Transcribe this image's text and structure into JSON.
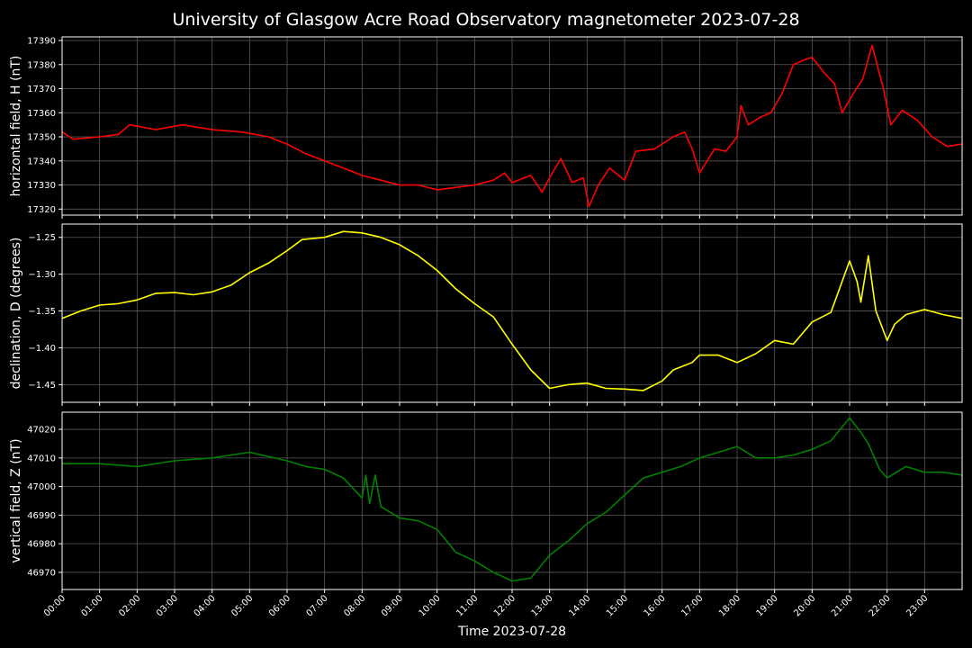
{
  "chart_data": {
    "title": "University of Glasgow Acre Road Observatory magnetometer 2023-07-28",
    "xlabel": "Time 2023-07-28",
    "x_ticks": [
      "00:00",
      "01:00",
      "02:00",
      "03:00",
      "04:00",
      "05:00",
      "06:00",
      "07:00",
      "08:00",
      "09:00",
      "10:00",
      "11:00",
      "12:00",
      "13:00",
      "14:00",
      "15:00",
      "16:00",
      "17:00",
      "18:00",
      "19:00",
      "20:00",
      "21:00",
      "22:00",
      "23:00"
    ],
    "xlim_hours": [
      0,
      24
    ],
    "grid": true,
    "panels": [
      {
        "type": "line",
        "name": "horizontal",
        "ylabel": "horizontal field, H (nT)",
        "color": "#ff0000",
        "ylim": [
          17317.5,
          17391.5
        ],
        "y_ticks": [
          "17320",
          "17330",
          "17340",
          "17350",
          "17360",
          "17370",
          "17380",
          "17390"
        ],
        "y_tick_values": [
          17320,
          17330,
          17340,
          17350,
          17360,
          17370,
          17380,
          17390
        ],
        "points": [
          [
            0,
            17352
          ],
          [
            0.3,
            17349
          ],
          [
            1,
            17350
          ],
          [
            1.5,
            17351
          ],
          [
            1.8,
            17355
          ],
          [
            2.5,
            17353
          ],
          [
            3.2,
            17355
          ],
          [
            4,
            17353
          ],
          [
            4.8,
            17352
          ],
          [
            5.5,
            17350
          ],
          [
            6,
            17347
          ],
          [
            6.5,
            17343
          ],
          [
            7,
            17340
          ],
          [
            7.5,
            17337
          ],
          [
            8,
            17334
          ],
          [
            8.5,
            17332
          ],
          [
            9,
            17330
          ],
          [
            9.5,
            17330
          ],
          [
            10,
            17328
          ],
          [
            10.5,
            17329
          ],
          [
            11,
            17330
          ],
          [
            11.5,
            17332
          ],
          [
            11.8,
            17335
          ],
          [
            12,
            17331
          ],
          [
            12.5,
            17334
          ],
          [
            12.8,
            17327
          ],
          [
            13,
            17333
          ],
          [
            13.3,
            17341
          ],
          [
            13.6,
            17331
          ],
          [
            13.9,
            17333
          ],
          [
            14.05,
            17321
          ],
          [
            14.3,
            17330
          ],
          [
            14.6,
            17337
          ],
          [
            15,
            17332
          ],
          [
            15.3,
            17344
          ],
          [
            15.8,
            17345
          ],
          [
            16.3,
            17350
          ],
          [
            16.6,
            17352
          ],
          [
            16.8,
            17345
          ],
          [
            17,
            17335
          ],
          [
            17.4,
            17345
          ],
          [
            17.7,
            17344
          ],
          [
            18,
            17350
          ],
          [
            18.1,
            17363
          ],
          [
            18.3,
            17355
          ],
          [
            18.6,
            17358
          ],
          [
            18.9,
            17360
          ],
          [
            19.2,
            17368
          ],
          [
            19.5,
            17380
          ],
          [
            19.8,
            17382
          ],
          [
            20,
            17383
          ],
          [
            20.3,
            17377
          ],
          [
            20.6,
            17372
          ],
          [
            20.8,
            17360
          ],
          [
            21.1,
            17368
          ],
          [
            21.35,
            17374
          ],
          [
            21.6,
            17388
          ],
          [
            21.9,
            17370
          ],
          [
            22.1,
            17355
          ],
          [
            22.4,
            17361
          ],
          [
            22.8,
            17357
          ],
          [
            23.2,
            17350
          ],
          [
            23.6,
            17346
          ],
          [
            24,
            17347
          ]
        ]
      },
      {
        "type": "line",
        "name": "declination",
        "ylabel": "declination, D (degrees)",
        "color": "#ffff00",
        "ylim": [
          -1.474,
          -1.232
        ],
        "y_ticks": [
          "−1.45",
          "−1.40",
          "−1.35",
          "−1.30",
          "−1.25"
        ],
        "y_tick_values": [
          -1.45,
          -1.4,
          -1.35,
          -1.3,
          -1.25
        ],
        "points": [
          [
            0,
            -1.36
          ],
          [
            0.5,
            -1.35
          ],
          [
            1,
            -1.342
          ],
          [
            1.5,
            -1.34
          ],
          [
            2,
            -1.335
          ],
          [
            2.5,
            -1.326
          ],
          [
            3,
            -1.325
          ],
          [
            3.5,
            -1.328
          ],
          [
            4,
            -1.324
          ],
          [
            4.5,
            -1.315
          ],
          [
            5,
            -1.298
          ],
          [
            5.5,
            -1.285
          ],
          [
            6,
            -1.268
          ],
          [
            6.4,
            -1.253
          ],
          [
            7,
            -1.25
          ],
          [
            7.5,
            -1.242
          ],
          [
            8,
            -1.244
          ],
          [
            8.5,
            -1.25
          ],
          [
            9,
            -1.26
          ],
          [
            9.5,
            -1.275
          ],
          [
            10,
            -1.295
          ],
          [
            10.5,
            -1.32
          ],
          [
            11,
            -1.34
          ],
          [
            11.5,
            -1.358
          ],
          [
            12,
            -1.395
          ],
          [
            12.5,
            -1.43
          ],
          [
            13,
            -1.455
          ],
          [
            13.5,
            -1.45
          ],
          [
            14,
            -1.448
          ],
          [
            14.5,
            -1.455
          ],
          [
            15,
            -1.456
          ],
          [
            15.5,
            -1.458
          ],
          [
            16,
            -1.445
          ],
          [
            16.3,
            -1.43
          ],
          [
            16.8,
            -1.42
          ],
          [
            17,
            -1.41
          ],
          [
            17.5,
            -1.41
          ],
          [
            18,
            -1.42
          ],
          [
            18.5,
            -1.408
          ],
          [
            19,
            -1.39
          ],
          [
            19.5,
            -1.395
          ],
          [
            20,
            -1.365
          ],
          [
            20.5,
            -1.352
          ],
          [
            20.8,
            -1.31
          ],
          [
            21,
            -1.282
          ],
          [
            21.2,
            -1.31
          ],
          [
            21.3,
            -1.338
          ],
          [
            21.5,
            -1.275
          ],
          [
            21.7,
            -1.35
          ],
          [
            22,
            -1.39
          ],
          [
            22.2,
            -1.368
          ],
          [
            22.5,
            -1.355
          ],
          [
            23,
            -1.348
          ],
          [
            23.5,
            -1.355
          ],
          [
            24,
            -1.36
          ]
        ]
      },
      {
        "type": "line",
        "name": "vertical",
        "ylabel": "vertical field, Z (nT)",
        "color": "#008000",
        "ylim": [
          46964,
          47026
        ],
        "y_ticks": [
          "46970",
          "46980",
          "46990",
          "47000",
          "47010",
          "47020"
        ],
        "y_tick_values": [
          46970,
          46980,
          46990,
          47000,
          47010,
          47020
        ],
        "points": [
          [
            0,
            47008
          ],
          [
            1,
            47008
          ],
          [
            2,
            47007
          ],
          [
            3,
            47009
          ],
          [
            4,
            47010
          ],
          [
            5,
            47012
          ],
          [
            6,
            47009
          ],
          [
            6.5,
            47007
          ],
          [
            7,
            47006
          ],
          [
            7.5,
            47003
          ],
          [
            8,
            46996
          ],
          [
            8.1,
            47004
          ],
          [
            8.2,
            46994
          ],
          [
            8.35,
            47004
          ],
          [
            8.5,
            46993
          ],
          [
            9,
            46989
          ],
          [
            9.5,
            46988
          ],
          [
            10,
            46985
          ],
          [
            10.5,
            46977
          ],
          [
            11,
            46974
          ],
          [
            11.5,
            46970
          ],
          [
            12,
            46967
          ],
          [
            12.5,
            46968
          ],
          [
            13,
            46976
          ],
          [
            13.5,
            46981
          ],
          [
            14,
            46987
          ],
          [
            14.5,
            46991
          ],
          [
            15,
            46997
          ],
          [
            15.5,
            47003
          ],
          [
            16,
            47005
          ],
          [
            16.5,
            47007
          ],
          [
            17,
            47010
          ],
          [
            17.5,
            47012
          ],
          [
            18,
            47014
          ],
          [
            18.5,
            47010
          ],
          [
            19,
            47010
          ],
          [
            19.5,
            47011
          ],
          [
            20,
            47013
          ],
          [
            20.5,
            47016
          ],
          [
            21,
            47024
          ],
          [
            21.3,
            47019
          ],
          [
            21.5,
            47015
          ],
          [
            21.8,
            47006
          ],
          [
            22,
            47003
          ],
          [
            22.5,
            47007
          ],
          [
            23,
            47005
          ],
          [
            23.5,
            47005
          ],
          [
            24,
            47004
          ]
        ]
      }
    ]
  }
}
